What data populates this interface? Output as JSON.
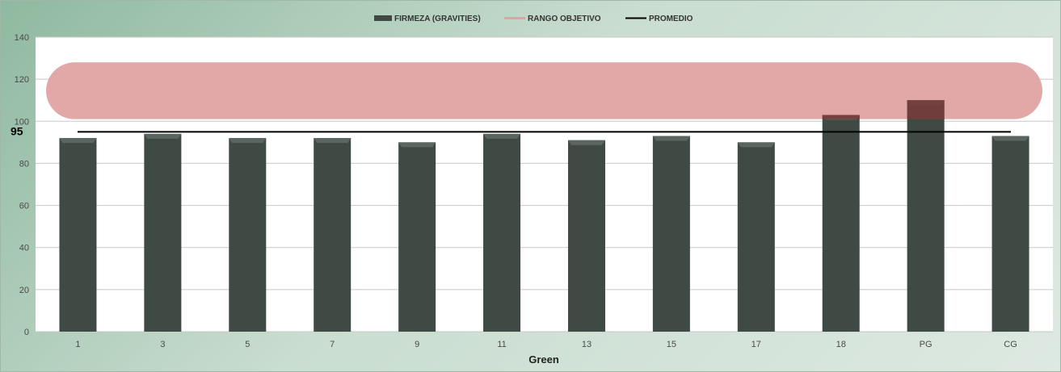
{
  "chart_data": {
    "type": "bar",
    "categories": [
      "1",
      "3",
      "5",
      "7",
      "9",
      "11",
      "13",
      "15",
      "17",
      "18",
      "PG",
      "CG"
    ],
    "series": [
      {
        "name": "FIRMEZA (GRAVITIES)",
        "values": [
          92,
          94,
          92,
          92,
          90,
          94,
          91,
          93,
          90,
          103,
          110,
          93
        ],
        "color": "#3f4a45"
      }
    ],
    "target_range": {
      "name": "RANGO OBJETIVO",
      "min": 101,
      "max": 128,
      "color": "#e0a3a3"
    },
    "average": {
      "name": "PROMEDIO",
      "value": 95,
      "label": "95",
      "color": "#000000"
    },
    "xlabel": "Green",
    "ylabel": "",
    "ylim": [
      0,
      140
    ],
    "yticks": [
      "0",
      "20",
      "40",
      "60",
      "80",
      "100",
      "120",
      "140"
    ],
    "grid": true,
    "legend_position": "top-center",
    "colors": {
      "bar": "#3f4a45",
      "bar_top": "#5b6661",
      "bar_over_target": "#7a3b3b",
      "grid": "#c8c8c8",
      "plot_bg": "#ffffff"
    }
  }
}
